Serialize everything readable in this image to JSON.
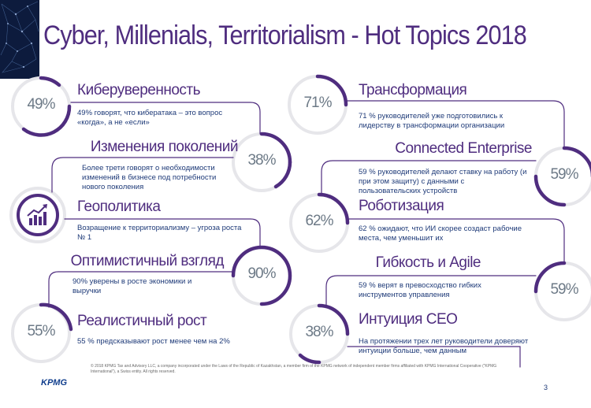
{
  "title": "Cyber, Millenials, Territorialism - Hot Topics 2018",
  "left": [
    {
      "pct": "49%",
      "heading": "Киберуверенность",
      "desc": "49% говорят, что кибератака – это вопрос «когда», а не «если»"
    },
    {
      "pct": "38%",
      "heading": "Изменения поколений",
      "desc": "Более трети говорят о необходимости изменений в бизнесе под потребности нового поколения"
    },
    {
      "pct": "",
      "heading": "Геополитика",
      "desc": "Возращение к территориализму – угроза роста № 1"
    },
    {
      "pct": "90%",
      "heading": "Оптимистичный взгляд",
      "desc": "90% уверены в росте экономики и выручки"
    },
    {
      "pct": "55%",
      "heading": "Реалистичный рост",
      "desc": "55 % предсказывают рост менее чем на 2%"
    }
  ],
  "right": [
    {
      "pct": "71%",
      "heading": "Трансформация",
      "desc": "71 % руководителей уже подготовились к лидерству в трансформации организации"
    },
    {
      "pct": "59%",
      "heading": "Connected Enterprise",
      "desc": "59 % руководителей делают ставку на работу (и при этом защиту) с данными с пользовательских устройств"
    },
    {
      "pct": "62%",
      "heading": "Роботизация",
      "desc": "62 % ожидают, что ИИ скорее создаст рабочие места, чем уменьшит их"
    },
    {
      "pct": "59%",
      "heading": "Гибкость и Agile",
      "desc": "59 % верят в превосходство гибких инструментов управления"
    },
    {
      "pct": "38%",
      "heading": "Интуиция CEO",
      "desc": "На протяжении трех лет руководители доверяют интуиции больше, чем данным"
    }
  ],
  "footer": {
    "text": "© 2018 KPMG Tax and Advisory LLC, a company incorporated under the Laws of the Republic of Kazakhstan, a member firm of the KPMG network of independent member firms affiliated with KPMG International Cooperative (“KPMG International”), a Swiss entity. All rights reserved.",
    "logo": "KPMG",
    "page": "3"
  },
  "colors": {
    "accent": "#4f2d7f",
    "ring": "#e6e6ea",
    "text": "#1e3a78",
    "pct": "#6d7a87"
  }
}
